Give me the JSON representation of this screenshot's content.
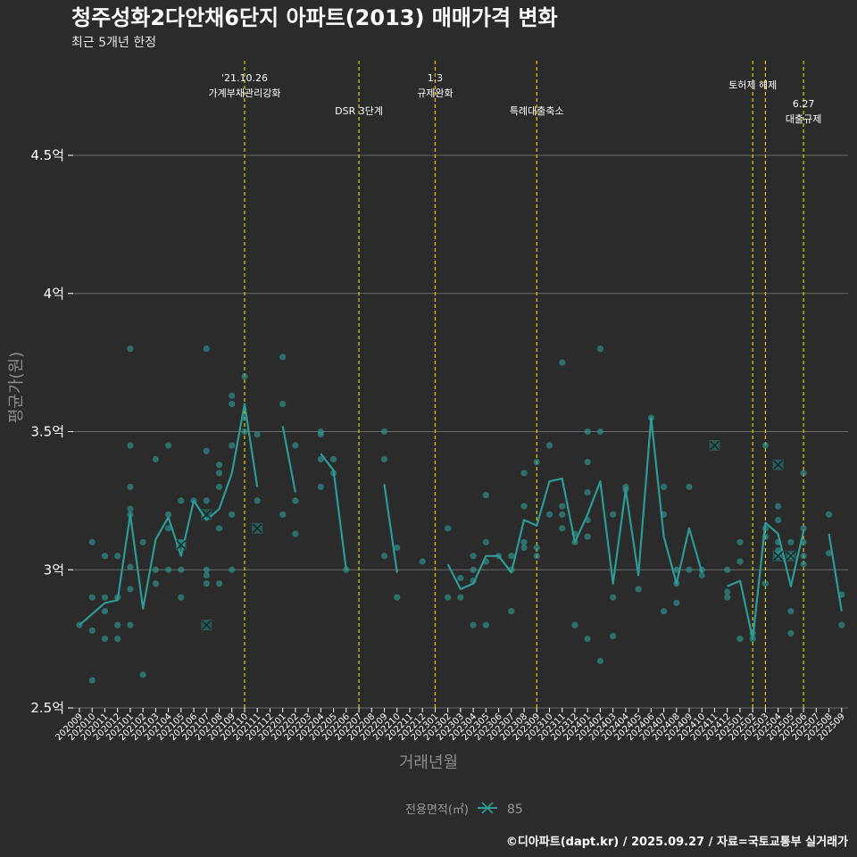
{
  "chart_data": {
    "type": "line",
    "title": "청주성화2다안채6단지 아파트(2013) 매매가격 변화",
    "subtitle": "최근 5개년 한정",
    "xlabel": "거래년월",
    "ylabel": "평균가(원)",
    "ylim": [
      2.5,
      4.85
    ],
    "yticks": [
      {
        "value": 2.5,
        "label": "2.5억"
      },
      {
        "value": 3.0,
        "label": "3억"
      },
      {
        "value": 3.5,
        "label": "3.5억"
      },
      {
        "value": 4.0,
        "label": "4억"
      },
      {
        "value": 4.5,
        "label": "4.5억"
      }
    ],
    "categories": [
      "202009",
      "202010",
      "202011",
      "202012",
      "202101",
      "202102",
      "202103",
      "202104",
      "202105",
      "202106",
      "202107",
      "202108",
      "202109",
      "202110",
      "202111",
      "202112",
      "202201",
      "202202",
      "202203",
      "202204",
      "202205",
      "202206",
      "202207",
      "202208",
      "202209",
      "202210",
      "202211",
      "202212",
      "202301",
      "202302",
      "202303",
      "202304",
      "202305",
      "202306",
      "202307",
      "202308",
      "202309",
      "202310",
      "202311",
      "202312",
      "202401",
      "202402",
      "202403",
      "202404",
      "202405",
      "202406",
      "202407",
      "202408",
      "202409",
      "202410",
      "202411",
      "202412",
      "202501",
      "202502",
      "202503",
      "202504",
      "202505",
      "202506",
      "202507",
      "202508",
      "202509"
    ],
    "series": [
      {
        "name": "85",
        "color": "#2e9a96",
        "values": [
          2.8,
          2.84,
          2.88,
          2.89,
          3.2,
          2.86,
          3.11,
          3.19,
          3.05,
          3.25,
          3.18,
          3.22,
          3.35,
          3.6,
          3.3,
          null,
          3.52,
          3.28,
          null,
          3.42,
          3.36,
          3.0,
          null,
          null,
          3.31,
          2.99,
          null,
          null,
          null,
          3.02,
          2.93,
          2.95,
          3.05,
          3.05,
          2.99,
          3.18,
          3.16,
          3.32,
          3.33,
          3.1,
          3.2,
          3.32,
          2.95,
          3.29,
          2.98,
          3.55,
          3.12,
          2.95,
          3.15,
          2.99,
          null,
          2.94,
          2.96,
          2.75,
          3.17,
          3.13,
          2.94,
          3.14,
          null,
          3.13,
          2.85
        ]
      }
    ],
    "points": [
      [
        0,
        2.8
      ],
      [
        1,
        2.6
      ],
      [
        1,
        2.78
      ],
      [
        1,
        2.9
      ],
      [
        1,
        3.1
      ],
      [
        2,
        2.75
      ],
      [
        2,
        2.85
      ],
      [
        2,
        2.9
      ],
      [
        2,
        3.05
      ],
      [
        3,
        2.75
      ],
      [
        3,
        2.8
      ],
      [
        3,
        2.9
      ],
      [
        3,
        3.05
      ],
      [
        4,
        2.8
      ],
      [
        4,
        2.93
      ],
      [
        4,
        3.01
      ],
      [
        4,
        3.2
      ],
      [
        4,
        3.22
      ],
      [
        4,
        3.3
      ],
      [
        4,
        3.45
      ],
      [
        4,
        3.8
      ],
      [
        5,
        2.62
      ],
      [
        5,
        3.1
      ],
      [
        6,
        2.95
      ],
      [
        6,
        3.0
      ],
      [
        6,
        3.4
      ],
      [
        7,
        3.0
      ],
      [
        7,
        3.15
      ],
      [
        7,
        3.2
      ],
      [
        7,
        3.45
      ],
      [
        8,
        2.9
      ],
      [
        8,
        3.0
      ],
      [
        8,
        3.1
      ],
      [
        8,
        3.25
      ],
      [
        9,
        3.25
      ],
      [
        10,
        2.95
      ],
      [
        10,
        2.98
      ],
      [
        10,
        3.0
      ],
      [
        10,
        3.25
      ],
      [
        10,
        3.43
      ],
      [
        10,
        3.8
      ],
      [
        11,
        2.95
      ],
      [
        11,
        3.15
      ],
      [
        11,
        3.3
      ],
      [
        11,
        3.35
      ],
      [
        11,
        3.38
      ],
      [
        12,
        3.0
      ],
      [
        12,
        3.2
      ],
      [
        12,
        3.45
      ],
      [
        12,
        3.6
      ],
      [
        12,
        3.63
      ],
      [
        13,
        3.5
      ],
      [
        13,
        3.55
      ],
      [
        13,
        3.7
      ],
      [
        14,
        3.25
      ],
      [
        14,
        3.49
      ],
      [
        16,
        3.2
      ],
      [
        16,
        3.6
      ],
      [
        16,
        3.77
      ],
      [
        17,
        3.13
      ],
      [
        17,
        3.25
      ],
      [
        17,
        3.45
      ],
      [
        19,
        3.3
      ],
      [
        19,
        3.4
      ],
      [
        19,
        3.49
      ],
      [
        19,
        3.5
      ],
      [
        20,
        3.35
      ],
      [
        20,
        3.4
      ],
      [
        21,
        3.0
      ],
      [
        24,
        3.05
      ],
      [
        24,
        3.4
      ],
      [
        24,
        3.5
      ],
      [
        25,
        2.9
      ],
      [
        25,
        3.08
      ],
      [
        27,
        3.03
      ],
      [
        29,
        2.9
      ],
      [
        29,
        3.15
      ],
      [
        30,
        2.9
      ],
      [
        30,
        2.97
      ],
      [
        31,
        2.8
      ],
      [
        31,
        2.96
      ],
      [
        31,
        3.0
      ],
      [
        31,
        3.05
      ],
      [
        32,
        2.8
      ],
      [
        32,
        3.03
      ],
      [
        32,
        3.1
      ],
      [
        32,
        3.27
      ],
      [
        33,
        3.05
      ],
      [
        34,
        2.85
      ],
      [
        34,
        3.0
      ],
      [
        34,
        3.05
      ],
      [
        35,
        3.08
      ],
      [
        35,
        3.1
      ],
      [
        35,
        3.23
      ],
      [
        35,
        3.35
      ],
      [
        36,
        3.05
      ],
      [
        36,
        3.08
      ],
      [
        36,
        3.39
      ],
      [
        37,
        3.2
      ],
      [
        37,
        3.45
      ],
      [
        38,
        3.15
      ],
      [
        38,
        3.2
      ],
      [
        38,
        3.23
      ],
      [
        38,
        3.75
      ],
      [
        39,
        2.8
      ],
      [
        39,
        3.1
      ],
      [
        39,
        3.13
      ],
      [
        40,
        2.75
      ],
      [
        40,
        3.12
      ],
      [
        40,
        3.18
      ],
      [
        40,
        3.28
      ],
      [
        40,
        3.39
      ],
      [
        40,
        3.5
      ],
      [
        41,
        2.67
      ],
      [
        41,
        3.5
      ],
      [
        41,
        3.8
      ],
      [
        42,
        2.76
      ],
      [
        42,
        2.9
      ],
      [
        42,
        3.2
      ],
      [
        43,
        3.29
      ],
      [
        43,
        3.3
      ],
      [
        44,
        2.93
      ],
      [
        45,
        3.55
      ],
      [
        46,
        2.85
      ],
      [
        46,
        3.2
      ],
      [
        46,
        3.3
      ],
      [
        47,
        2.88
      ],
      [
        47,
        2.95
      ],
      [
        47,
        3.0
      ],
      [
        48,
        3.0
      ],
      [
        48,
        3.3
      ],
      [
        49,
        2.98
      ],
      [
        49,
        3.0
      ],
      [
        51,
        2.9
      ],
      [
        51,
        2.92
      ],
      [
        51,
        3.0
      ],
      [
        52,
        2.75
      ],
      [
        52,
        3.03
      ],
      [
        52,
        3.1
      ],
      [
        53,
        2.75
      ],
      [
        53,
        2.77
      ],
      [
        54,
        2.95
      ],
      [
        54,
        3.12
      ],
      [
        54,
        3.15
      ],
      [
        54,
        3.45
      ],
      [
        55,
        3.05
      ],
      [
        55,
        3.07
      ],
      [
        55,
        3.1
      ],
      [
        55,
        3.18
      ],
      [
        55,
        3.23
      ],
      [
        56,
        2.77
      ],
      [
        56,
        2.85
      ],
      [
        56,
        3.05
      ],
      [
        56,
        3.1
      ],
      [
        57,
        3.02
      ],
      [
        57,
        3.05
      ],
      [
        57,
        3.1
      ],
      [
        57,
        3.15
      ],
      [
        57,
        3.35
      ],
      [
        59,
        3.06
      ],
      [
        59,
        3.2
      ],
      [
        60,
        2.8
      ],
      [
        60,
        2.91
      ]
    ],
    "crosses": [
      [
        8,
        3.09
      ],
      [
        10,
        2.8
      ],
      [
        10,
        3.2
      ],
      [
        14,
        3.15
      ],
      [
        50,
        3.45
      ],
      [
        55,
        3.05
      ],
      [
        55,
        3.38
      ],
      [
        56,
        3.05
      ]
    ],
    "events": [
      {
        "x": 13,
        "lines": [
          "'21.10.26",
          "가계부채관리강화"
        ],
        "level": 0
      },
      {
        "x": 22,
        "lines": [
          "DSR 3단계"
        ],
        "level": 3
      },
      {
        "x": 28,
        "lines": [
          "1.3",
          "규제완화"
        ],
        "level": 0
      },
      {
        "x": 36,
        "lines": [
          "특례대출축소"
        ],
        "level": 3
      },
      {
        "x": 53,
        "lines": [
          "토허제 해제"
        ],
        "level": 1
      },
      {
        "x": 54,
        "lines": [],
        "level": 0
      },
      {
        "x": 57,
        "lines": [
          "6.27",
          "대출규제"
        ],
        "level": 2
      }
    ],
    "legend": {
      "title": "전용면적(㎡)",
      "label": "85",
      "position": "bottom"
    },
    "grid": true,
    "colors": {
      "background": "#2b2b2b",
      "series": "#2e9a96",
      "event_line": "#d6d000",
      "grid": "#6a6a6a"
    }
  },
  "caption": "©디아파트(dapt.kr) / 2025.09.27 / 자료=국토교통부 실거래가"
}
